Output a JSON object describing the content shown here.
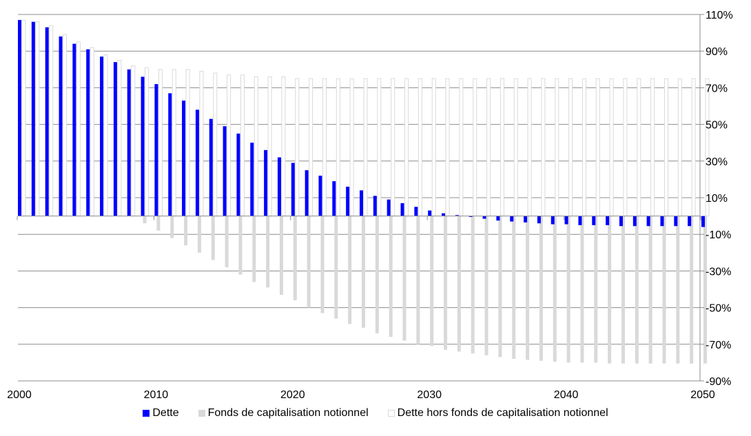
{
  "chart_data": {
    "type": "bar",
    "x": [
      2000,
      2001,
      2002,
      2003,
      2004,
      2005,
      2006,
      2007,
      2008,
      2009,
      2010,
      2011,
      2012,
      2013,
      2014,
      2015,
      2016,
      2017,
      2018,
      2019,
      2020,
      2021,
      2022,
      2023,
      2024,
      2025,
      2026,
      2027,
      2028,
      2029,
      2030,
      2031,
      2032,
      2033,
      2034,
      2035,
      2036,
      2037,
      2038,
      2039,
      2040,
      2041,
      2042,
      2043,
      2044,
      2045,
      2046,
      2047,
      2048,
      2049,
      2050
    ],
    "x_tick_labels": [
      "2000",
      "2010",
      "2020",
      "2030",
      "2040",
      "2050"
    ],
    "y_tick_labels": [
      "110%",
      "90%",
      "70%",
      "50%",
      "30%",
      "10%",
      "-10%",
      "-30%",
      "-50%",
      "-70%",
      "-90%"
    ],
    "ylim": [
      -90,
      110
    ],
    "grid": true,
    "y_axis_side": "right",
    "legend_placement": "bottom",
    "series": [
      {
        "name": "Dette",
        "color": "#0000ff",
        "values": [
          107,
          106,
          103,
          98,
          94,
          91,
          87,
          84,
          80,
          76,
          72,
          67,
          63,
          58,
          53,
          49,
          45,
          40,
          36,
          32,
          29,
          25,
          22,
          19,
          16,
          14,
          11,
          9,
          7,
          5,
          3,
          1.5,
          0.5,
          -0.5,
          -1.5,
          -2.5,
          -3,
          -3.5,
          -4,
          -4.5,
          -4.5,
          -5,
          -5,
          -5,
          -5.5,
          -5.5,
          -5.5,
          -5.5,
          -5.5,
          -5.5,
          -6
        ]
      },
      {
        "name": "Fonds de capitalisation notionnel",
        "color": "#d9d9d9",
        "values": [
          0,
          0,
          0,
          0,
          0,
          0,
          0,
          0,
          0,
          -4,
          -8,
          -12,
          -16,
          -20,
          -24,
          -28,
          -32,
          -36,
          -39,
          -43,
          -46,
          -50,
          -53,
          -56,
          -59,
          -61,
          -64,
          -66,
          -68,
          -70,
          -71,
          -73,
          -74,
          -75,
          -76,
          -77,
          -78,
          -78.5,
          -79,
          -79.5,
          -80,
          -80,
          -80,
          -80.5,
          -80.5,
          -80.5,
          -80.5,
          -80.5,
          -80.5,
          -80.5,
          -80.5
        ]
      },
      {
        "name": "Dette hors fonds de capitalisation notionnel",
        "color": "#ffffff",
        "border": "#d9d9d9",
        "values": [
          107,
          106,
          104,
          99,
          95,
          92,
          88,
          85,
          82,
          81,
          80,
          80,
          80,
          79,
          78,
          77,
          77,
          76,
          76,
          76,
          75,
          75,
          75,
          75,
          75,
          75,
          75,
          75,
          75,
          75,
          75,
          75,
          75,
          75,
          75,
          75,
          75,
          75,
          75,
          75,
          75,
          75,
          75,
          75,
          75,
          75,
          75,
          75,
          75,
          75,
          75
        ]
      }
    ]
  }
}
